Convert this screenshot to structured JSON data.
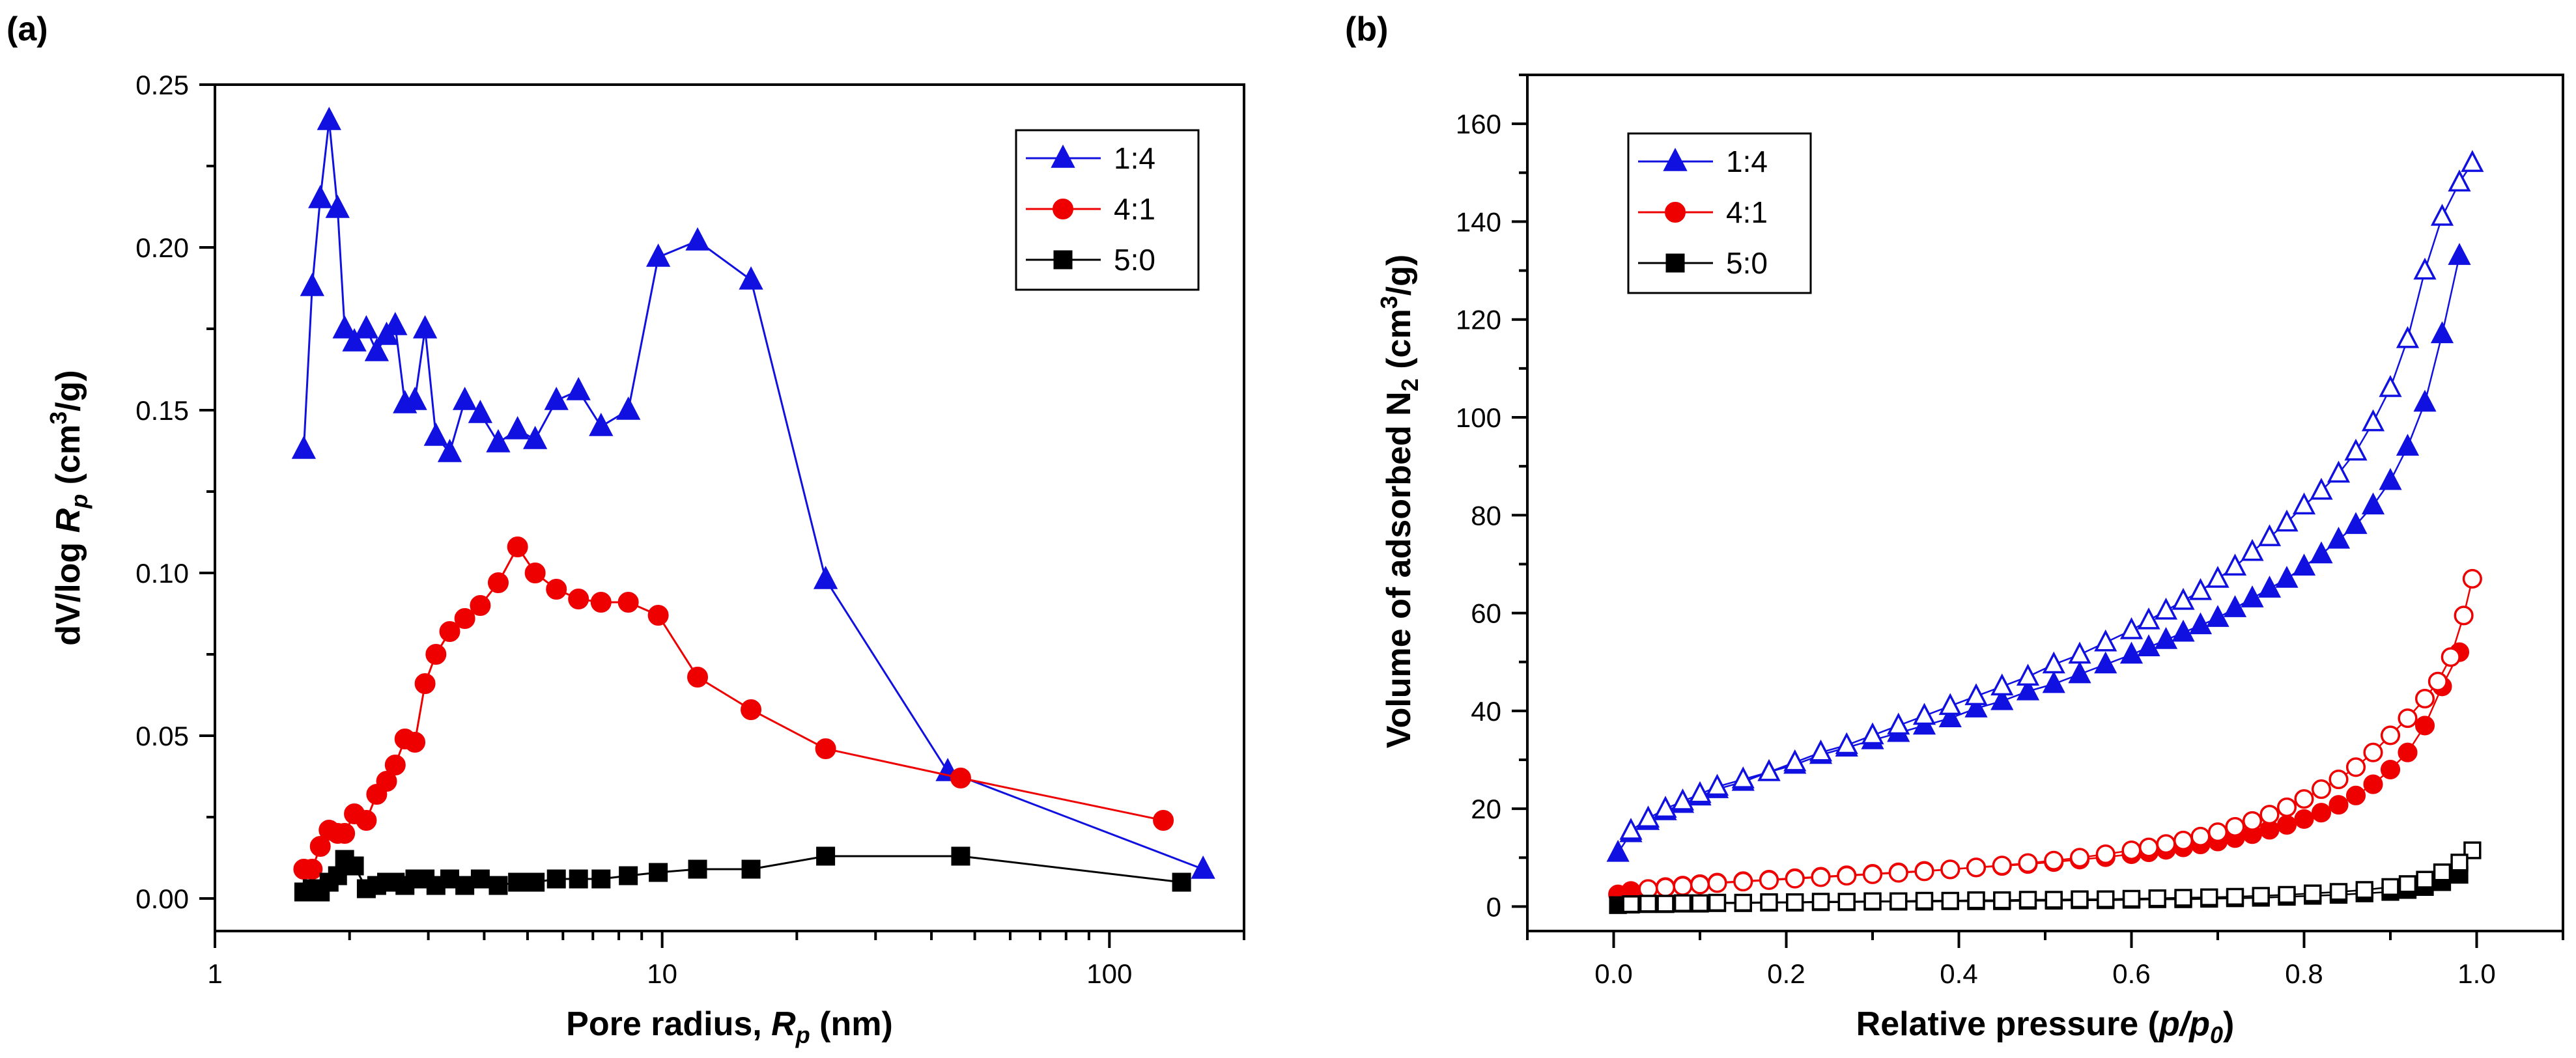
{
  "chart_data": [
    {
      "type": "line",
      "panel_label": "(a)",
      "title": "",
      "xlabel_prefix": "Pore radius, ",
      "xlabel_var": "R",
      "xlabel_sub": "p",
      "xlabel_suffix": " (nm)",
      "ylabel_prefix": "dV/log ",
      "ylabel_var": "R",
      "ylabel_sub": "p",
      "ylabel_unit": " (cm",
      "ylabel_sup": "3",
      "ylabel_end": "/g)",
      "xscale": "log",
      "xlim": [
        1,
        200
      ],
      "ylim": [
        -0.01,
        0.25
      ],
      "xticks": [
        1,
        10,
        100
      ],
      "xtick_labels": [
        "1",
        "10",
        "100"
      ],
      "yticks": [
        0.0,
        0.05,
        0.1,
        0.15,
        0.2,
        0.25
      ],
      "ytick_labels": [
        "0.00",
        "0.05",
        "0.10",
        "0.15",
        "0.20",
        "0.25"
      ],
      "legend_position": "top-right",
      "series": [
        {
          "name": "1:4",
          "color": "#1010e0",
          "marker": "triangle",
          "x": [
            1.58,
            1.65,
            1.72,
            1.8,
            1.88,
            1.95,
            2.05,
            2.18,
            2.3,
            2.42,
            2.53,
            2.66,
            2.8,
            2.95,
            3.12,
            3.35,
            3.62,
            3.92,
            4.3,
            4.75,
            5.2,
            5.8,
            6.5,
            7.3,
            8.4,
            9.8,
            12.0,
            15.8,
            23.2,
            43.5,
            162
          ],
          "y": [
            0.138,
            0.188,
            0.215,
            0.239,
            0.212,
            0.175,
            0.171,
            0.175,
            0.168,
            0.173,
            0.176,
            0.152,
            0.153,
            0.175,
            0.142,
            0.137,
            0.153,
            0.149,
            0.14,
            0.144,
            0.141,
            0.153,
            0.156,
            0.145,
            0.15,
            0.197,
            0.202,
            0.19,
            0.098,
            0.039,
            0.009
          ]
        },
        {
          "name": "4:1",
          "color": "#ee0000",
          "marker": "circle",
          "x": [
            1.58,
            1.65,
            1.72,
            1.8,
            1.88,
            1.95,
            2.05,
            2.18,
            2.3,
            2.42,
            2.53,
            2.66,
            2.8,
            2.95,
            3.12,
            3.35,
            3.62,
            3.92,
            4.3,
            4.75,
            5.2,
            5.8,
            6.5,
            7.3,
            8.4,
            9.8,
            12.0,
            15.8,
            23.2,
            46.5,
            132
          ],
          "y": [
            0.009,
            0.009,
            0.016,
            0.021,
            0.02,
            0.02,
            0.026,
            0.024,
            0.032,
            0.036,
            0.041,
            0.049,
            0.048,
            0.066,
            0.075,
            0.082,
            0.086,
            0.09,
            0.097,
            0.108,
            0.1,
            0.095,
            0.092,
            0.091,
            0.091,
            0.087,
            0.068,
            0.058,
            0.046,
            0.037,
            0.024
          ]
        },
        {
          "name": "5:0",
          "color": "#000000",
          "marker": "square",
          "x": [
            1.58,
            1.65,
            1.72,
            1.8,
            1.88,
            1.95,
            2.05,
            2.18,
            2.3,
            2.42,
            2.53,
            2.66,
            2.8,
            2.95,
            3.12,
            3.35,
            3.62,
            3.92,
            4.3,
            4.75,
            5.2,
            5.8,
            6.5,
            7.3,
            8.4,
            9.8,
            12.0,
            15.8,
            23.2,
            46.5,
            145
          ],
          "y": [
            0.002,
            0.003,
            0.002,
            0.005,
            0.007,
            0.012,
            0.01,
            0.003,
            0.004,
            0.005,
            0.005,
            0.004,
            0.006,
            0.006,
            0.004,
            0.006,
            0.004,
            0.006,
            0.004,
            0.005,
            0.005,
            0.006,
            0.006,
            0.006,
            0.007,
            0.008,
            0.009,
            0.009,
            0.013,
            0.013,
            0.005
          ]
        }
      ]
    },
    {
      "type": "scatter",
      "panel_label": "(b)",
      "title": "",
      "xlabel_prefix": "Relative pressure (",
      "xlabel_var": "p/p",
      "xlabel_sub": "0",
      "xlabel_suffix": ")",
      "ylabel_prefix": "Volume of adsorbed N",
      "ylabel_sub": "2",
      "ylabel_unit": " (cm",
      "ylabel_sup": "3",
      "ylabel_end": "/g)",
      "xlim": [
        -0.1,
        1.1
      ],
      "ylim": [
        -5,
        170
      ],
      "xticks": [
        0.0,
        0.2,
        0.4,
        0.6,
        0.8,
        1.0
      ],
      "xtick_labels": [
        "0.0",
        "0.2",
        "0.4",
        "0.6",
        "0.8",
        "1.0"
      ],
      "yticks": [
        0,
        20,
        40,
        60,
        80,
        100,
        120,
        140,
        160
      ],
      "ytick_labels": [
        "0",
        "20",
        "40",
        "60",
        "80",
        "100",
        "120",
        "140",
        "160"
      ],
      "legend_position": "top-left",
      "series": [
        {
          "name": "1:4",
          "branch": "adsorption",
          "color": "#1010e0",
          "marker": "triangle",
          "filled": true,
          "x": [
            0.005,
            0.02,
            0.04,
            0.06,
            0.08,
            0.1,
            0.12,
            0.15,
            0.18,
            0.21,
            0.24,
            0.27,
            0.3,
            0.33,
            0.36,
            0.39,
            0.42,
            0.45,
            0.48,
            0.51,
            0.54,
            0.57,
            0.6,
            0.62,
            0.64,
            0.66,
            0.68,
            0.7,
            0.72,
            0.74,
            0.76,
            0.78,
            0.8,
            0.82,
            0.84,
            0.86,
            0.88,
            0.9,
            0.92,
            0.94,
            0.96,
            0.98
          ],
          "y": [
            11,
            15,
            17.5,
            19.5,
            21,
            22.5,
            24,
            25.5,
            27.5,
            29,
            31,
            32.5,
            34,
            35.5,
            37,
            38.5,
            40.5,
            42,
            44,
            45.5,
            47.5,
            49.5,
            51.5,
            53,
            54.5,
            56,
            57.5,
            59,
            61,
            63,
            65,
            67,
            69.5,
            72,
            75,
            78,
            82,
            87,
            94,
            103,
            117,
            133
          ]
        },
        {
          "name": "1:4",
          "branch": "desorption",
          "color": "#1010e0",
          "marker": "triangle",
          "filled": false,
          "x": [
            0.995,
            0.98,
            0.96,
            0.94,
            0.92,
            0.9,
            0.88,
            0.86,
            0.84,
            0.82,
            0.8,
            0.78,
            0.76,
            0.74,
            0.72,
            0.7,
            0.68,
            0.66,
            0.64,
            0.62,
            0.6,
            0.57,
            0.54,
            0.51,
            0.48,
            0.45,
            0.42,
            0.39,
            0.36,
            0.33,
            0.3,
            0.27,
            0.24,
            0.21,
            0.18,
            0.15,
            0.12,
            0.1,
            0.08,
            0.06,
            0.04,
            0.02
          ],
          "y": [
            152,
            148,
            141,
            130,
            116,
            106,
            99,
            93,
            88.5,
            85,
            82,
            78.5,
            75.5,
            72.5,
            69.5,
            67,
            64.5,
            62.5,
            60.5,
            58.5,
            56.5,
            54,
            51.5,
            49.5,
            47,
            45,
            43,
            41,
            39,
            37,
            35,
            33,
            31.5,
            29.5,
            27.5,
            26,
            24.5,
            23,
            21.5,
            20,
            18,
            15.5
          ]
        },
        {
          "name": "4:1",
          "branch": "adsorption",
          "color": "#ee0000",
          "marker": "circle",
          "filled": true,
          "x": [
            0.005,
            0.02,
            0.04,
            0.06,
            0.08,
            0.1,
            0.12,
            0.15,
            0.18,
            0.21,
            0.24,
            0.27,
            0.3,
            0.33,
            0.36,
            0.39,
            0.42,
            0.45,
            0.48,
            0.51,
            0.54,
            0.57,
            0.6,
            0.62,
            0.64,
            0.66,
            0.68,
            0.7,
            0.72,
            0.74,
            0.76,
            0.78,
            0.8,
            0.82,
            0.84,
            0.86,
            0.88,
            0.9,
            0.92,
            0.94,
            0.96,
            0.98
          ],
          "y": [
            2.5,
            3.2,
            3.6,
            4.0,
            4.3,
            4.6,
            4.9,
            5.2,
            5.5,
            5.8,
            6.1,
            6.4,
            6.7,
            7.0,
            7.3,
            7.6,
            8.0,
            8.3,
            8.7,
            9.1,
            9.6,
            10.1,
            10.7,
            11.1,
            11.6,
            12.1,
            12.7,
            13.3,
            14.0,
            14.8,
            15.7,
            16.7,
            17.9,
            19.2,
            20.8,
            22.7,
            25.0,
            28.0,
            31.5,
            37.0,
            45.0,
            52.0
          ]
        },
        {
          "name": "4:1",
          "branch": "desorption",
          "color": "#ee0000",
          "marker": "circle",
          "filled": false,
          "x": [
            0.995,
            0.985,
            0.97,
            0.955,
            0.94,
            0.92,
            0.9,
            0.88,
            0.86,
            0.84,
            0.82,
            0.8,
            0.78,
            0.76,
            0.74,
            0.72,
            0.7,
            0.68,
            0.66,
            0.64,
            0.62,
            0.6,
            0.57,
            0.54,
            0.51,
            0.48,
            0.45,
            0.42,
            0.39,
            0.36,
            0.33,
            0.3,
            0.27,
            0.24,
            0.21,
            0.18,
            0.15,
            0.12,
            0.1,
            0.08,
            0.06,
            0.04
          ],
          "y": [
            67,
            59.5,
            51,
            46,
            42.5,
            38.5,
            35,
            31.5,
            28.5,
            26,
            24,
            22,
            20.3,
            18.8,
            17.5,
            16.3,
            15.2,
            14.3,
            13.5,
            12.8,
            12.1,
            11.5,
            10.7,
            10.0,
            9.4,
            8.9,
            8.4,
            8.0,
            7.6,
            7.2,
            6.9,
            6.6,
            6.3,
            6.0,
            5.7,
            5.4,
            5.1,
            4.8,
            4.5,
            4.2,
            3.9,
            3.6
          ]
        },
        {
          "name": "5:0",
          "branch": "adsorption",
          "color": "#000000",
          "marker": "square",
          "filled": true,
          "x": [
            0.005,
            0.02,
            0.04,
            0.06,
            0.08,
            0.1,
            0.12,
            0.15,
            0.18,
            0.21,
            0.24,
            0.27,
            0.3,
            0.33,
            0.36,
            0.39,
            0.42,
            0.45,
            0.48,
            0.51,
            0.54,
            0.57,
            0.6,
            0.63,
            0.66,
            0.69,
            0.72,
            0.75,
            0.78,
            0.81,
            0.84,
            0.87,
            0.9,
            0.92,
            0.94,
            0.96,
            0.98
          ],
          "y": [
            0.3,
            0.4,
            0.5,
            0.5,
            0.6,
            0.6,
            0.7,
            0.7,
            0.8,
            0.8,
            0.9,
            0.9,
            1.0,
            1.0,
            1.0,
            1.1,
            1.1,
            1.1,
            1.2,
            1.2,
            1.3,
            1.3,
            1.4,
            1.5,
            1.5,
            1.6,
            1.7,
            1.8,
            2.0,
            2.2,
            2.4,
            2.7,
            3.0,
            3.4,
            4.0,
            5.0,
            6.5
          ]
        },
        {
          "name": "5:0",
          "branch": "desorption",
          "color": "#000000",
          "marker": "square",
          "filled": false,
          "x": [
            0.995,
            0.98,
            0.96,
            0.94,
            0.92,
            0.9,
            0.87,
            0.84,
            0.81,
            0.78,
            0.75,
            0.72,
            0.69,
            0.66,
            0.63,
            0.6,
            0.57,
            0.54,
            0.51,
            0.48,
            0.45,
            0.42,
            0.39,
            0.36,
            0.33,
            0.3,
            0.27,
            0.24,
            0.21,
            0.18,
            0.15,
            0.12,
            0.1,
            0.08,
            0.06,
            0.04,
            0.02
          ],
          "y": [
            11.5,
            9.0,
            7.0,
            5.5,
            4.6,
            4.0,
            3.4,
            3.0,
            2.7,
            2.4,
            2.2,
            2.0,
            1.9,
            1.8,
            1.7,
            1.6,
            1.5,
            1.5,
            1.4,
            1.4,
            1.3,
            1.3,
            1.2,
            1.2,
            1.1,
            1.1,
            1.0,
            1.0,
            0.9,
            0.9,
            0.8,
            0.8,
            0.7,
            0.7,
            0.6,
            0.6,
            0.5
          ]
        }
      ]
    }
  ]
}
